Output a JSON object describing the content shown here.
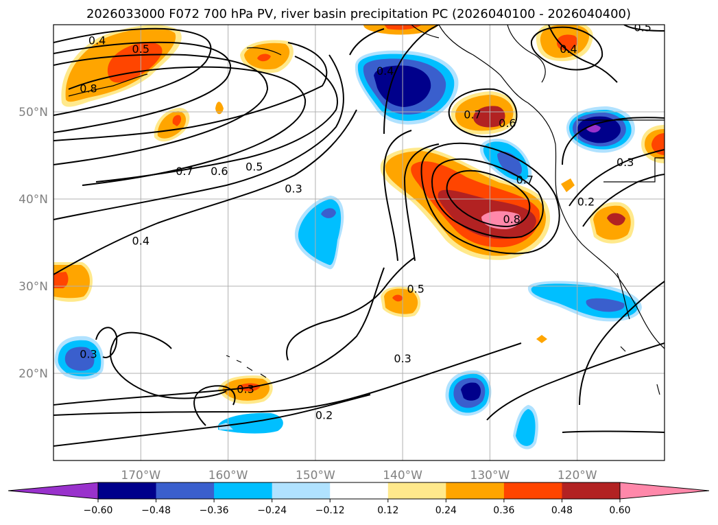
{
  "title": "2026033000 F072 700 hPa PV, river basin precipitation PC (2026040100 - 2026040400)",
  "map": {
    "lon_range": [
      -180,
      -110
    ],
    "lat_range": [
      10,
      60
    ],
    "lon_ticks": [
      {
        "value": -170,
        "label": "170°W"
      },
      {
        "value": -160,
        "label": "160°W"
      },
      {
        "value": -150,
        "label": "150°W"
      },
      {
        "value": -140,
        "label": "140°W"
      },
      {
        "value": -130,
        "label": "130°W"
      },
      {
        "value": -120,
        "label": "120°W"
      }
    ],
    "lat_ticks": [
      {
        "value": 20,
        "label": "20°N"
      },
      {
        "value": 30,
        "label": "30°N"
      },
      {
        "value": 40,
        "label": "40°N"
      },
      {
        "value": 50,
        "label": "50°N"
      }
    ]
  },
  "contour_labels": [
    {
      "text": "0.4",
      "lon": -175,
      "lat": 58
    },
    {
      "text": "0.5",
      "lon": -170,
      "lat": 57
    },
    {
      "text": "0.8",
      "lon": -176,
      "lat": 52.5
    },
    {
      "text": "0.7",
      "lon": -165,
      "lat": 43
    },
    {
      "text": "0.6",
      "lon": -161,
      "lat": 43
    },
    {
      "text": "0.5",
      "lon": -157,
      "lat": 43.5
    },
    {
      "text": "0.3",
      "lon": -152.5,
      "lat": 41
    },
    {
      "text": "0.4",
      "lon": -170,
      "lat": 35
    },
    {
      "text": "0.3",
      "lon": -176,
      "lat": 22
    },
    {
      "text": "0.3",
      "lon": -158,
      "lat": 18
    },
    {
      "text": "0.2",
      "lon": -149,
      "lat": 15
    },
    {
      "text": "0.3",
      "lon": -140,
      "lat": 21.5
    },
    {
      "text": "0.5",
      "lon": -138.5,
      "lat": 29.5
    },
    {
      "text": "0.4",
      "lon": -142,
      "lat": 54.5
    },
    {
      "text": "0.7",
      "lon": -132,
      "lat": 49.5
    },
    {
      "text": "0.6",
      "lon": -128,
      "lat": 48.5
    },
    {
      "text": "0.7",
      "lon": -126,
      "lat": 42
    },
    {
      "text": "0.8",
      "lon": -127.5,
      "lat": 37.5
    },
    {
      "text": "0.4",
      "lon": -121,
      "lat": 57
    },
    {
      "text": "0.5",
      "lon": -112.5,
      "lat": 59.5
    },
    {
      "text": "0.3",
      "lon": -114.5,
      "lat": 44
    },
    {
      "text": "0.2",
      "lon": -119,
      "lat": 39.5
    }
  ],
  "colorbar": {
    "ticks": [
      "−0.60",
      "−0.48",
      "−0.36",
      "−0.24",
      "−0.12",
      "0.12",
      "0.24",
      "0.36",
      "0.48",
      "0.60"
    ],
    "colors": [
      "#9932cc",
      "#00008b",
      "#3a5fcd",
      "#00bfff",
      "#b0e2ff",
      "#ffffff",
      "#ffe98c",
      "#ffa500",
      "#ff4500",
      "#b22222",
      "#ff88aa"
    ]
  },
  "shading_colors": {
    "neg1": "#b0e2ff",
    "neg2": "#00bfff",
    "neg3": "#3a5fcd",
    "neg4": "#00008b",
    "neg5": "#9932cc",
    "pos1": "#ffe98c",
    "pos2": "#ffa500",
    "pos3": "#ff4500",
    "pos4": "#b22222",
    "pos5": "#ff88aa"
  }
}
